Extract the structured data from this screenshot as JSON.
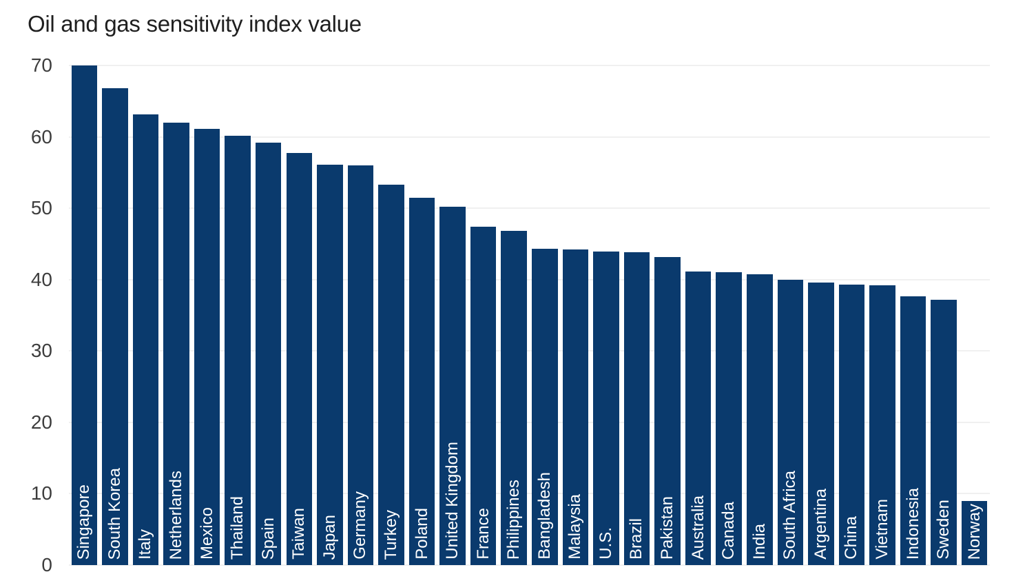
{
  "chart_data": {
    "type": "bar",
    "title": "Oil and gas sensitivity index value",
    "categories": [
      "Singapore",
      "South Korea",
      "Italy",
      "Netherlands",
      "Mexico",
      "Thailand",
      "Spain",
      "Taiwan",
      "Japan",
      "Germany",
      "Turkey",
      "Poland",
      "United Kingdom",
      "France",
      "Philippines",
      "Bangladesh",
      "Malaysia",
      "U.S.",
      "Brazil",
      "Pakistan",
      "Australia",
      "Canada",
      "India",
      "South Africa",
      "Argentina",
      "China",
      "Vietnam",
      "Indonesia",
      "Sweden",
      "Norway"
    ],
    "values": [
      70.0,
      66.8,
      63.1,
      62.0,
      61.1,
      60.2,
      59.2,
      57.7,
      56.1,
      56.0,
      53.3,
      51.5,
      50.2,
      47.4,
      46.8,
      44.3,
      44.2,
      43.9,
      43.8,
      43.2,
      41.1,
      41.0,
      40.7,
      40.0,
      39.6,
      39.3,
      39.2,
      37.7,
      37.2,
      9.0
    ],
    "xlabel": "",
    "ylabel": "",
    "ylim": [
      0,
      70
    ],
    "yticks": [
      0,
      10,
      20,
      30,
      40,
      50,
      60,
      70
    ],
    "grid": "horizontal",
    "legend": "none",
    "bar_label_position": "inside-bottom-rotated-90",
    "colors": {
      "bar": "#0a3a6d",
      "bar_label": "#ffffff",
      "gridline": "#e2e2e2",
      "tick_label": "#3d3d3d",
      "title": "#1f1f1f",
      "background": "#ffffff"
    }
  }
}
